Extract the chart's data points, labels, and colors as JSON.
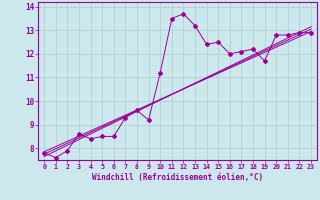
{
  "xlabel": "Windchill (Refroidissement éolien,°C)",
  "background_color": "#cde8ed",
  "grid_color": "#aacccc",
  "line_color": "#990099",
  "xlim": [
    -0.5,
    23.5
  ],
  "ylim": [
    7.5,
    14.2
  ],
  "xticks": [
    0,
    1,
    2,
    3,
    4,
    5,
    6,
    7,
    8,
    9,
    10,
    11,
    12,
    13,
    14,
    15,
    16,
    17,
    18,
    19,
    20,
    21,
    22,
    23
  ],
  "yticks": [
    8,
    9,
    10,
    11,
    12,
    13,
    14
  ],
  "curve1_x": [
    0,
    1,
    2,
    3,
    4,
    5,
    6,
    7,
    8,
    9,
    10,
    11,
    12,
    13,
    14,
    15,
    16,
    17,
    18,
    19,
    20,
    21,
    22,
    23
  ],
  "curve1_y": [
    7.8,
    7.6,
    7.9,
    8.6,
    8.4,
    8.5,
    8.5,
    9.3,
    9.6,
    9.2,
    11.2,
    13.5,
    13.7,
    13.2,
    12.4,
    12.5,
    12.0,
    12.1,
    12.2,
    11.7,
    12.8,
    12.8,
    12.9,
    12.9
  ],
  "curve2_x": [
    0,
    23
  ],
  "curve2_y": [
    7.75,
    13.05
  ],
  "curve3_x": [
    0,
    23
  ],
  "curve3_y": [
    7.65,
    13.15
  ],
  "curve4_x": [
    0,
    23
  ],
  "curve4_y": [
    7.85,
    12.95
  ]
}
